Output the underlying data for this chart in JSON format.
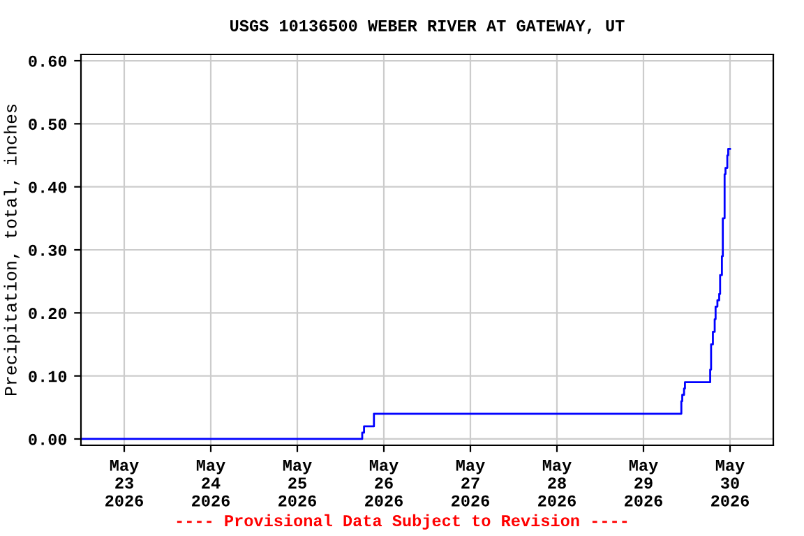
{
  "chart_data": {
    "type": "step",
    "title": "USGS 10136500 WEBER RIVER AT GATEWAY, UT",
    "ylabel": "Precipitation, total, inches",
    "annotations": [
      "---- Provisional Data Subject to Revision ----"
    ],
    "series": [
      {
        "color": "#0000ff",
        "x": [
          "2026-05-22T12:00",
          "2026-05-25T18:00",
          "2026-05-25T18:30",
          "2026-05-25T21:15",
          "2026-05-29T10:30",
          "2026-05-29T10:45",
          "2026-05-29T11:15",
          "2026-05-29T11:30",
          "2026-05-29T18:30",
          "2026-05-29T18:45",
          "2026-05-29T19:15",
          "2026-05-29T19:45",
          "2026-05-29T20:00",
          "2026-05-29T20:30",
          "2026-05-29T21:00",
          "2026-05-29T21:15",
          "2026-05-29T21:45",
          "2026-05-29T22:00",
          "2026-05-29T22:30",
          "2026-05-29T22:45",
          "2026-05-29T23:15",
          "2026-05-29T23:30",
          "2026-05-30T00:00"
        ],
        "values": [
          0.0,
          0.01,
          0.02,
          0.04,
          0.06,
          0.07,
          0.08,
          0.09,
          0.11,
          0.15,
          0.17,
          0.19,
          0.21,
          0.22,
          0.23,
          0.26,
          0.29,
          0.35,
          0.42,
          0.43,
          0.45,
          0.46,
          0.46
        ]
      }
    ],
    "xlim": [
      "2026-05-22T12:00",
      "2026-05-30T12:00"
    ],
    "xticks": [
      {
        "value": "2026-05-23",
        "label": "May\n23\n2026"
      },
      {
        "value": "2026-05-24",
        "label": "May\n24\n2026"
      },
      {
        "value": "2026-05-25",
        "label": "May\n25\n2026"
      },
      {
        "value": "2026-05-26",
        "label": "May\n26\n2026"
      },
      {
        "value": "2026-05-27",
        "label": "May\n27\n2026"
      },
      {
        "value": "2026-05-28",
        "label": "May\n28\n2026"
      },
      {
        "value": "2026-05-29",
        "label": "May\n29\n2026"
      },
      {
        "value": "2026-05-30",
        "label": "May\n30\n2026"
      }
    ],
    "ylim": [
      -0.01,
      0.61
    ],
    "yticks": [
      {
        "value": 0,
        "label": "0.00"
      },
      {
        "value": 0.1,
        "label": "0.10"
      },
      {
        "value": 0.2,
        "label": "0.20"
      },
      {
        "value": 0.3,
        "label": "0.30"
      },
      {
        "value": 0.4,
        "label": "0.40"
      },
      {
        "value": 0.5,
        "label": "0.50"
      },
      {
        "value": 0.6,
        "label": "0.60"
      }
    ],
    "grid": true,
    "marker": "none",
    "line_style": "solid"
  }
}
